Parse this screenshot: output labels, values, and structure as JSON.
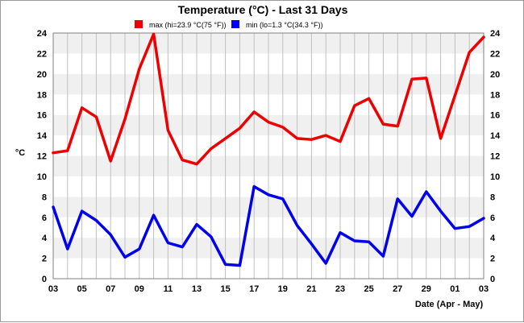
{
  "chart_data": {
    "type": "line",
    "title": "Temperature (°C) - Last 31 Days",
    "xlabel": "Date (Apr - May)",
    "ylabel": "°C",
    "ylim": [
      0,
      24
    ],
    "y_ticks": [
      0,
      2,
      4,
      6,
      8,
      10,
      12,
      14,
      16,
      18,
      20,
      22,
      24
    ],
    "grid": true,
    "legend_position": "top-center",
    "x": [
      "03",
      "04",
      "05",
      "06",
      "07",
      "08",
      "09",
      "10",
      "11",
      "12",
      "13",
      "14",
      "15",
      "16",
      "17",
      "18",
      "19",
      "20",
      "21",
      "22",
      "23",
      "24",
      "25",
      "26",
      "27",
      "28",
      "29",
      "30",
      "01",
      "02",
      "03"
    ],
    "x_tick_labels": [
      "03",
      "",
      "05",
      "",
      "07",
      "",
      "09",
      "",
      "11",
      "",
      "13",
      "",
      "15",
      "",
      "17",
      "",
      "19",
      "",
      "21",
      "",
      "23",
      "",
      "25",
      "",
      "27",
      "",
      "29",
      "",
      "01",
      "",
      "03"
    ],
    "series": [
      {
        "name": "max (hi=23.9 °C(75 °F))",
        "color": "#ee0000",
        "values": [
          12.3,
          12.5,
          16.7,
          15.8,
          11.5,
          15.6,
          20.5,
          23.9,
          14.5,
          11.6,
          11.2,
          12.7,
          13.7,
          14.7,
          16.3,
          15.3,
          14.8,
          13.7,
          13.6,
          14.0,
          13.4,
          16.9,
          17.6,
          15.1,
          14.9,
          19.5,
          19.6,
          13.7,
          17.9,
          22.1,
          23.6
        ]
      },
      {
        "name": "min (lo=1.3 °C(34.3 °F))",
        "color": "#0000ee",
        "values": [
          7.0,
          2.9,
          6.6,
          5.7,
          4.3,
          2.1,
          2.9,
          6.2,
          3.5,
          3.1,
          5.3,
          4.1,
          1.4,
          1.3,
          9.0,
          8.2,
          7.8,
          5.2,
          3.4,
          1.5,
          4.5,
          3.7,
          3.6,
          2.2,
          7.8,
          6.1,
          8.5,
          6.6,
          4.9,
          5.1,
          5.9
        ]
      }
    ]
  }
}
